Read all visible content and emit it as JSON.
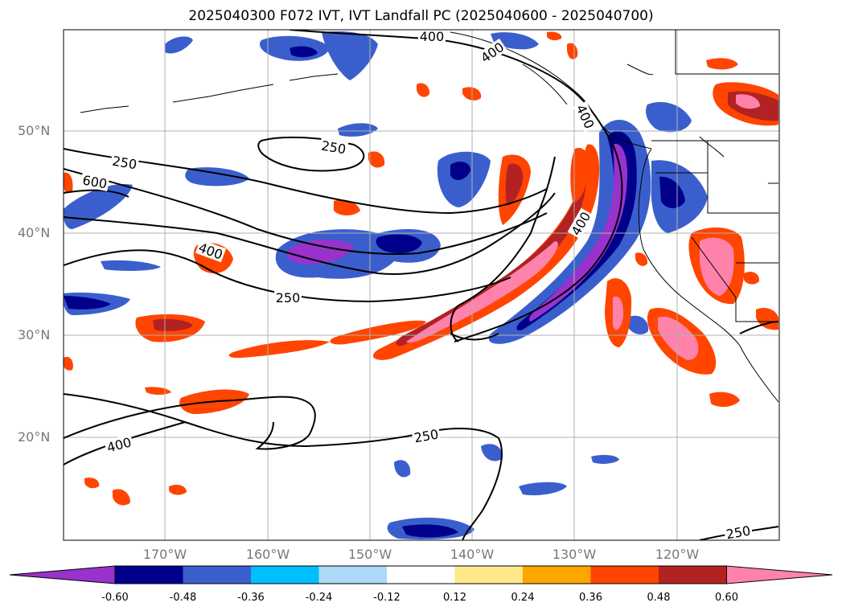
{
  "title": "2025040300 F072 IVT, IVT Landfall PC (2025040600 - 2025040700)",
  "lat_labels": [
    "50°N",
    "40°N",
    "30°N",
    "20°N"
  ],
  "lon_labels": [
    "170°W",
    "160°W",
    "150°W",
    "140°W",
    "130°W",
    "120°W"
  ],
  "contour_labels": [
    "400",
    "400",
    "400",
    "250",
    "250",
    "600",
    "400",
    "250",
    "400",
    "400",
    "250",
    "250"
  ],
  "colorbar": {
    "ticks": [
      "-0.60",
      "-0.48",
      "-0.36",
      "-0.24",
      "-0.12",
      "0.12",
      "0.24",
      "0.36",
      "0.48",
      "0.60"
    ],
    "colors": [
      "#9932cc",
      "#00008b",
      "#3a5fcd",
      "#00bfff",
      "#add8f7",
      "#ffffff",
      "#ffe88a",
      "#ffa500",
      "#ff4500",
      "#b22222",
      "#ff82ab"
    ],
    "extend": "both"
  },
  "colors": {
    "contour": "#000000",
    "grid": "#b0b0b0",
    "coast": "#000000"
  }
}
